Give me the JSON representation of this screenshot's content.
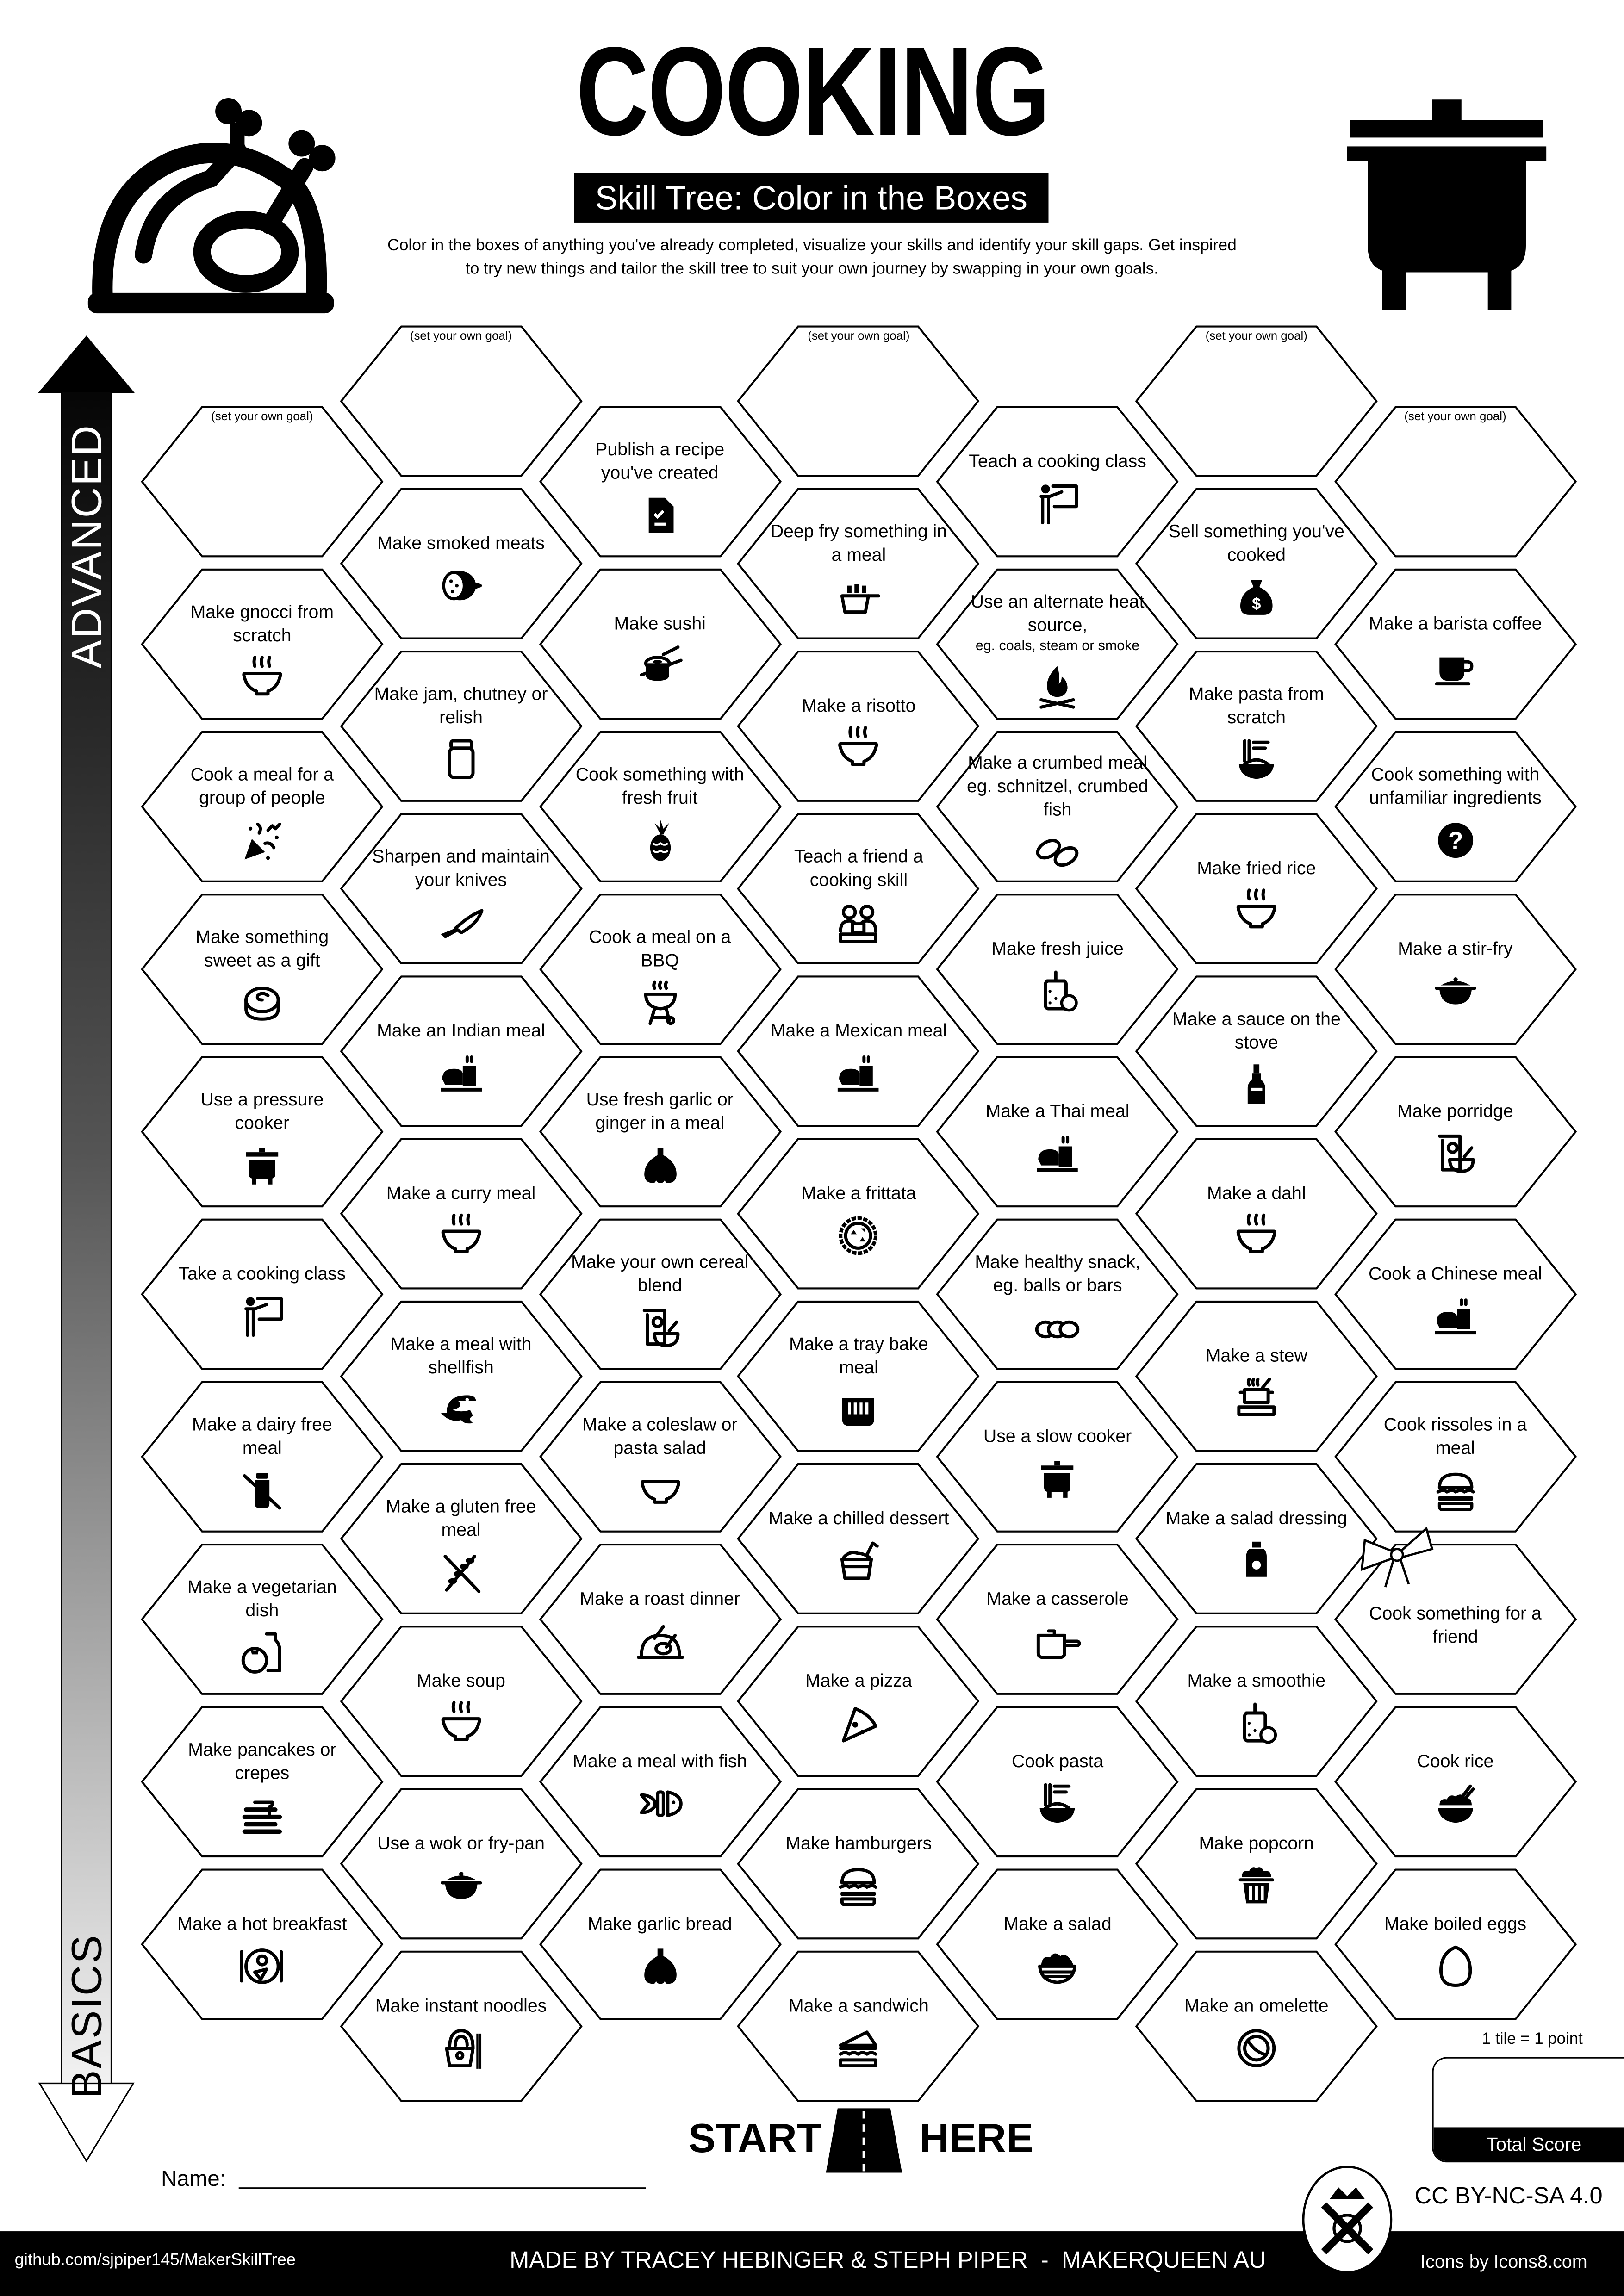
{
  "header": {
    "title": "COOKING",
    "subtitle": "Skill Tree: Color in the Boxes",
    "description_line1": "Color in the boxes of anything you've already completed, visualize your skills and identify your skill gaps.  Get inspired",
    "description_line2": "to try new things and tailor the skill tree to suit your own journey by swapping in your own goals.",
    "left_icon": "roast-turkey-icon",
    "right_icon": "cooking-pot-icon"
  },
  "axis": {
    "top_label": "ADVANCED",
    "bottom_label": "BASICS"
  },
  "goal_text": "(set your own goal)",
  "columns": [
    [
      {
        "goal": true
      },
      {
        "label": "Make gnocci from scratch",
        "icon": "steaming-bowl-icon"
      },
      {
        "label": "Cook a meal for a group of people",
        "icon": "party-popper-icon"
      },
      {
        "label": "Make something sweet as a gift",
        "icon": "cinnamon-roll-icon"
      },
      {
        "label": "Use a pressure cooker",
        "icon": "pressure-cooker-icon"
      },
      {
        "label": "Take a cooking class",
        "icon": "teacher-board-icon"
      },
      {
        "label": "Make a dairy free meal",
        "icon": "no-milk-icon"
      },
      {
        "label": "Make a vegetarian dish",
        "icon": "tomato-milk-icon"
      },
      {
        "label": "Make pancakes or crepes",
        "icon": "pancakes-icon"
      },
      {
        "label": "Make a hot breakfast",
        "icon": "breakfast-plate-icon"
      }
    ],
    [
      {
        "goal": true
      },
      {
        "label": "Make smoked meats",
        "icon": "sausage-icon"
      },
      {
        "label": "Make jam, chutney or relish",
        "icon": "jar-icon"
      },
      {
        "label": "Sharpen and maintain your knives",
        "icon": "knife-icon"
      },
      {
        "label": "Make an Indian meal",
        "icon": "meal-tray-icon"
      },
      {
        "label": "Make a curry meal",
        "icon": "steaming-bowl-icon"
      },
      {
        "label": "Make a meal with shellfish",
        "icon": "shrimp-icon"
      },
      {
        "label": "Make a gluten free meal",
        "icon": "no-gluten-icon"
      },
      {
        "label": "Make soup",
        "icon": "steaming-bowl-icon"
      },
      {
        "label": "Use a wok or fry-pan",
        "icon": "wok-icon"
      },
      {
        "label": "Make instant noodles",
        "icon": "noodle-box-icon"
      }
    ],
    [
      {
        "label": "Publish a recipe you've created",
        "icon": "recipe-document-icon"
      },
      {
        "label": "Make sushi",
        "icon": "sushi-icon"
      },
      {
        "label": "Cook something with fresh fruit",
        "icon": "pineapple-icon"
      },
      {
        "label": "Cook a meal on a BBQ",
        "icon": "bbq-grill-icon"
      },
      {
        "label": "Use fresh garlic or ginger in a meal",
        "icon": "garlic-icon"
      },
      {
        "label": "Make your own cereal blend",
        "icon": "cereal-box-icon"
      },
      {
        "label": "Make a coleslaw or pasta salad",
        "icon": "bowl-icon"
      },
      {
        "label": "Make a roast dinner",
        "icon": "roast-chicken-icon"
      },
      {
        "label": "Make a meal with fish",
        "icon": "fish-icon"
      },
      {
        "label": "Make garlic bread",
        "icon": "garlic-icon"
      }
    ],
    [
      {
        "goal": true
      },
      {
        "label": "Deep fry something in a meal",
        "icon": "deep-fryer-icon"
      },
      {
        "label": "Make a risotto",
        "icon": "steaming-bowl-icon"
      },
      {
        "label": "Teach a friend a cooking skill",
        "icon": "teaching-friends-icon"
      },
      {
        "label": "Make a Mexican meal",
        "icon": "meal-tray-icon"
      },
      {
        "label": "Make a frittata",
        "icon": "pie-icon"
      },
      {
        "label": "Make a tray bake meal",
        "icon": "tray-bake-icon"
      },
      {
        "label": "Make a chilled dessert",
        "icon": "dessert-cup-icon"
      },
      {
        "label": "Make a pizza",
        "icon": "pizza-icon"
      },
      {
        "label": "Make hamburgers",
        "icon": "burger-icon"
      },
      {
        "label": "Make a sandwich",
        "icon": "sandwich-icon"
      }
    ],
    [
      {
        "label": "Teach a cooking class",
        "icon": "teacher-board-icon"
      },
      {
        "label": "Use an alternate heat source,",
        "small": "eg. coals, steam or smoke",
        "icon": "campfire-icon"
      },
      {
        "label": "Make a crumbed meal eg. schnitzel, crumbed fish",
        "icon": "crumbed-icon"
      },
      {
        "label": "Make fresh juice",
        "icon": "juice-jar-icon"
      },
      {
        "label": "Make a Thai meal",
        "icon": "meal-tray-icon"
      },
      {
        "label": "Make healthy snack, eg. balls or bars",
        "icon": "snack-balls-icon"
      },
      {
        "label": "Use a slow cooker",
        "icon": "slow-cooker-icon"
      },
      {
        "label": "Make a casserole",
        "icon": "saucepan-icon"
      },
      {
        "label": "Cook pasta",
        "icon": "noodle-bowl-icon"
      },
      {
        "label": "Make a salad",
        "icon": "salad-bowl-icon"
      }
    ],
    [
      {
        "goal": true
      },
      {
        "label": "Sell something you've cooked",
        "icon": "money-bag-icon"
      },
      {
        "label": "Make pasta from scratch",
        "icon": "noodle-bowl-icon"
      },
      {
        "label": "Make fried rice",
        "icon": "steaming-bowl-icon"
      },
      {
        "label": "Make a sauce on the stove",
        "icon": "sauce-bottle-icon"
      },
      {
        "label": "Make a dahl",
        "icon": "steaming-bowl-icon"
      },
      {
        "label": "Make a stew",
        "icon": "stove-pot-icon"
      },
      {
        "label": "Make a salad dressing",
        "icon": "dressing-bottle-icon"
      },
      {
        "label": "Make a smoothie",
        "icon": "juice-jar-icon"
      },
      {
        "label": "Make popcorn",
        "icon": "popcorn-icon"
      },
      {
        "label": "Make an omelette",
        "icon": "omelette-icon"
      }
    ],
    [
      {
        "goal": true
      },
      {
        "label": "Make a barista coffee",
        "icon": "coffee-cup-icon"
      },
      {
        "label": "Cook something with unfamiliar ingredients",
        "icon": "question-icon"
      },
      {
        "label": "Make a stir-fry",
        "icon": "wok-icon"
      },
      {
        "label": "Make porridge",
        "icon": "cereal-box-icon"
      },
      {
        "label": "Cook a Chinese meal",
        "icon": "meal-tray-icon"
      },
      {
        "label": "Cook rissoles in a meal",
        "icon": "burger-icon"
      },
      {
        "label": "Cook something for a friend",
        "icon": "gift-bow-icon",
        "decoration": true
      },
      {
        "label": "Cook rice",
        "icon": "rice-bowl-icon"
      },
      {
        "label": "Make boiled eggs",
        "icon": "egg-icon"
      }
    ]
  ],
  "start": {
    "left": "START",
    "right": "HERE",
    "icon": "road-icon"
  },
  "name_label": "Name:",
  "score": {
    "note": "1 tile = 1 point",
    "label": "Total Score"
  },
  "license": "CC BY-NC-SA 4.0",
  "footer": {
    "repo": "github.com/sjpiper145/MakerSkillTree",
    "credits": "MADE BY TRACEY HEBINGER & STEPH PIPER  -  MAKERQUEEN AU",
    "icons_credit": "Icons by Icons8.com",
    "logo": "makerqueen-logo-icon"
  }
}
